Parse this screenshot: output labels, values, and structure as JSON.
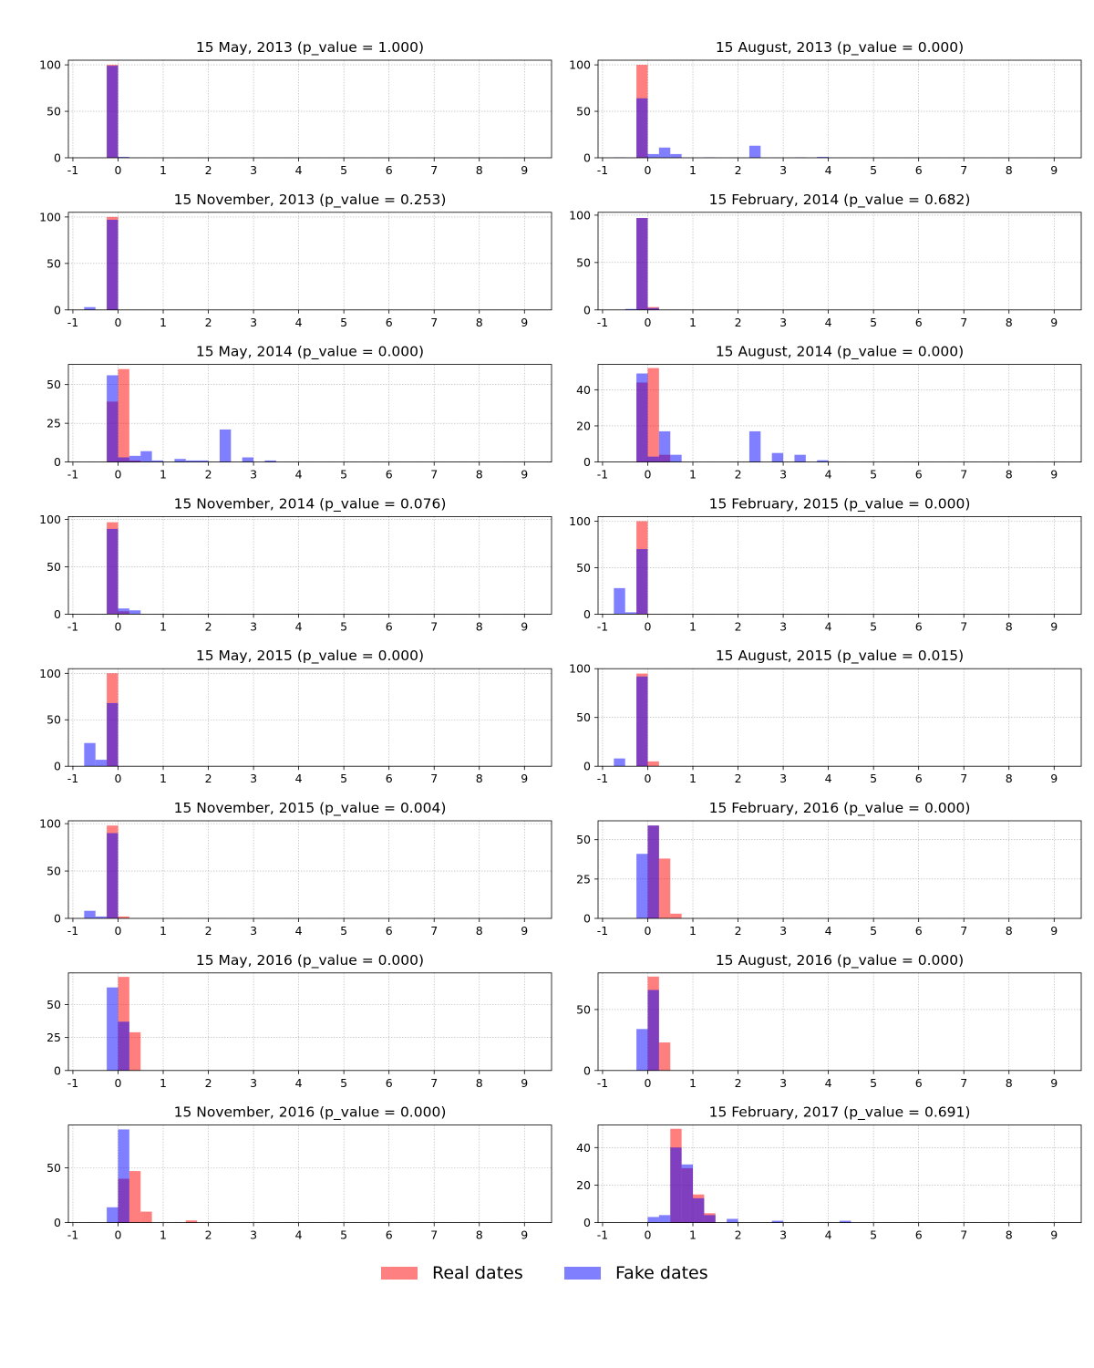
{
  "colors": {
    "real": "#ff0000",
    "fake": "#0000ff",
    "bar_alpha": 0.5,
    "grid": "#b0b0b0"
  },
  "legend": {
    "real_label": "Real dates",
    "fake_label": "Fake dates"
  },
  "chart_data": [
    {
      "type": "bar",
      "title": "15 May, 2013 (p_value = 1.000)",
      "xlim": [
        -1.1,
        9.6
      ],
      "ylim": [
        0,
        105
      ],
      "xticks": [
        -1,
        0,
        1,
        2,
        3,
        4,
        5,
        6,
        7,
        8,
        9
      ],
      "yticks": [
        0,
        50,
        100
      ],
      "bin_width": 0.25,
      "series": [
        {
          "name": "Real dates",
          "bins": [
            [
              -0.125,
              100
            ]
          ]
        },
        {
          "name": "Fake dates",
          "bins": [
            [
              -0.125,
              99
            ],
            [
              0.125,
              1
            ]
          ]
        }
      ]
    },
    {
      "type": "bar",
      "title": "15 August, 2013 (p_value = 0.000)",
      "xlim": [
        -1.1,
        9.6
      ],
      "ylim": [
        0,
        105
      ],
      "xticks": [
        -1,
        0,
        1,
        2,
        3,
        4,
        5,
        6,
        7,
        8,
        9
      ],
      "yticks": [
        0,
        50,
        100
      ],
      "bin_width": 0.25,
      "series": [
        {
          "name": "Real dates",
          "bins": [
            [
              -0.125,
              100
            ]
          ]
        },
        {
          "name": "Fake dates",
          "bins": [
            [
              -0.625,
              0.5
            ],
            [
              -0.125,
              64
            ],
            [
              0.125,
              4
            ],
            [
              0.375,
              11
            ],
            [
              0.625,
              4
            ],
            [
              1.375,
              0.5
            ],
            [
              2.375,
              13
            ],
            [
              3.375,
              0.5
            ],
            [
              3.875,
              1
            ]
          ]
        }
      ]
    },
    {
      "type": "bar",
      "title": "15 November, 2013 (p_value = 0.253)",
      "xlim": [
        -1.1,
        9.6
      ],
      "ylim": [
        0,
        105
      ],
      "xticks": [
        -1,
        0,
        1,
        2,
        3,
        4,
        5,
        6,
        7,
        8,
        9
      ],
      "yticks": [
        0,
        50,
        100
      ],
      "bin_width": 0.25,
      "series": [
        {
          "name": "Real dates",
          "bins": [
            [
              -0.125,
              100
            ]
          ]
        },
        {
          "name": "Fake dates",
          "bins": [
            [
              -0.625,
              3
            ],
            [
              -0.125,
              97
            ]
          ]
        }
      ]
    },
    {
      "type": "bar",
      "title": "15 February, 2014 (p_value = 0.682)",
      "xlim": [
        -1.1,
        9.6
      ],
      "ylim": [
        0,
        103
      ],
      "xticks": [
        -1,
        0,
        1,
        2,
        3,
        4,
        5,
        6,
        7,
        8,
        9
      ],
      "yticks": [
        0,
        50,
        100
      ],
      "bin_width": 0.25,
      "series": [
        {
          "name": "Real dates",
          "bins": [
            [
              -0.125,
              97
            ],
            [
              0.125,
              3
            ]
          ]
        },
        {
          "name": "Fake dates",
          "bins": [
            [
              -0.375,
              1
            ],
            [
              -0.125,
              97
            ],
            [
              0.125,
              2
            ]
          ]
        }
      ]
    },
    {
      "type": "bar",
      "title": "15 May, 2014 (p_value = 0.000)",
      "xlim": [
        -1.1,
        9.6
      ],
      "ylim": [
        0,
        63
      ],
      "xticks": [
        -1,
        0,
        1,
        2,
        3,
        4,
        5,
        6,
        7,
        8,
        9
      ],
      "yticks": [
        0,
        25,
        50
      ],
      "bin_width": 0.25,
      "series": [
        {
          "name": "Real dates",
          "bins": [
            [
              -0.125,
              39
            ],
            [
              0.125,
              60
            ],
            [
              0.375,
              1
            ]
          ]
        },
        {
          "name": "Fake dates",
          "bins": [
            [
              -0.125,
              56
            ],
            [
              0.125,
              3
            ],
            [
              0.375,
              4
            ],
            [
              0.625,
              7
            ],
            [
              0.875,
              1
            ],
            [
              1.375,
              2
            ],
            [
              1.625,
              1
            ],
            [
              1.875,
              1
            ],
            [
              2.375,
              21
            ],
            [
              2.875,
              3
            ],
            [
              3.375,
              1
            ]
          ]
        }
      ]
    },
    {
      "type": "bar",
      "title": "15 August, 2014 (p_value = 0.000)",
      "xlim": [
        -1.1,
        9.6
      ],
      "ylim": [
        0,
        54
      ],
      "xticks": [
        -1,
        0,
        1,
        2,
        3,
        4,
        5,
        6,
        7,
        8,
        9
      ],
      "yticks": [
        0,
        20,
        40
      ],
      "bin_width": 0.25,
      "series": [
        {
          "name": "Real dates",
          "bins": [
            [
              -0.125,
              44
            ],
            [
              0.125,
              52
            ],
            [
              0.375,
              4
            ]
          ]
        },
        {
          "name": "Fake dates",
          "bins": [
            [
              -0.125,
              49
            ],
            [
              0.125,
              3
            ],
            [
              0.375,
              17
            ],
            [
              0.625,
              4
            ],
            [
              2.375,
              17
            ],
            [
              2.875,
              5
            ],
            [
              3.375,
              4
            ],
            [
              3.875,
              1
            ]
          ]
        }
      ]
    },
    {
      "type": "bar",
      "title": "15 November, 2014 (p_value = 0.076)",
      "xlim": [
        -1.1,
        9.6
      ],
      "ylim": [
        0,
        103
      ],
      "xticks": [
        -1,
        0,
        1,
        2,
        3,
        4,
        5,
        6,
        7,
        8,
        9
      ],
      "yticks": [
        0,
        50,
        100
      ],
      "bin_width": 0.25,
      "series": [
        {
          "name": "Real dates",
          "bins": [
            [
              -0.125,
              97
            ],
            [
              0.125,
              3
            ]
          ]
        },
        {
          "name": "Fake dates",
          "bins": [
            [
              -0.125,
              90
            ],
            [
              0.125,
              6
            ],
            [
              0.375,
              4
            ]
          ]
        }
      ]
    },
    {
      "type": "bar",
      "title": "15 February, 2015 (p_value = 0.000)",
      "xlim": [
        -1.1,
        9.6
      ],
      "ylim": [
        0,
        105
      ],
      "xticks": [
        -1,
        0,
        1,
        2,
        3,
        4,
        5,
        6,
        7,
        8,
        9
      ],
      "yticks": [
        0,
        50,
        100
      ],
      "bin_width": 0.25,
      "series": [
        {
          "name": "Real dates",
          "bins": [
            [
              -0.125,
              100
            ]
          ]
        },
        {
          "name": "Fake dates",
          "bins": [
            [
              -0.625,
              28
            ],
            [
              -0.375,
              2
            ],
            [
              -0.125,
              70
            ]
          ]
        }
      ]
    },
    {
      "type": "bar",
      "title": "15 May, 2015 (p_value = 0.000)",
      "xlim": [
        -1.1,
        9.6
      ],
      "ylim": [
        0,
        105
      ],
      "xticks": [
        -1,
        0,
        1,
        2,
        3,
        4,
        5,
        6,
        7,
        8,
        9
      ],
      "yticks": [
        0,
        50,
        100
      ],
      "bin_width": 0.25,
      "series": [
        {
          "name": "Real dates",
          "bins": [
            [
              -0.125,
              100
            ]
          ]
        },
        {
          "name": "Fake dates",
          "bins": [
            [
              -0.625,
              25
            ],
            [
              -0.375,
              7
            ],
            [
              -0.125,
              68
            ]
          ]
        }
      ]
    },
    {
      "type": "bar",
      "title": "15 August, 2015 (p_value = 0.015)",
      "xlim": [
        -1.1,
        9.6
      ],
      "ylim": [
        0,
        100
      ],
      "xticks": [
        -1,
        0,
        1,
        2,
        3,
        4,
        5,
        6,
        7,
        8,
        9
      ],
      "yticks": [
        0,
        50,
        100
      ],
      "bin_width": 0.25,
      "series": [
        {
          "name": "Real dates",
          "bins": [
            [
              -0.125,
              95
            ],
            [
              0.125,
              5
            ]
          ]
        },
        {
          "name": "Fake dates",
          "bins": [
            [
              -0.625,
              8
            ],
            [
              -0.125,
              92
            ]
          ]
        }
      ]
    },
    {
      "type": "bar",
      "title": "15 November, 2015 (p_value = 0.004)",
      "xlim": [
        -1.1,
        9.6
      ],
      "ylim": [
        0,
        103
      ],
      "xticks": [
        -1,
        0,
        1,
        2,
        3,
        4,
        5,
        6,
        7,
        8,
        9
      ],
      "yticks": [
        0,
        50,
        100
      ],
      "bin_width": 0.25,
      "series": [
        {
          "name": "Real dates",
          "bins": [
            [
              -0.125,
              98
            ],
            [
              0.125,
              2
            ]
          ]
        },
        {
          "name": "Fake dates",
          "bins": [
            [
              -0.625,
              8
            ],
            [
              -0.375,
              2
            ],
            [
              -0.125,
              90
            ]
          ]
        }
      ]
    },
    {
      "type": "bar",
      "title": "15 February, 2016 (p_value = 0.000)",
      "xlim": [
        -1.1,
        9.6
      ],
      "ylim": [
        0,
        62
      ],
      "xticks": [
        -1,
        0,
        1,
        2,
        3,
        4,
        5,
        6,
        7,
        8,
        9
      ],
      "yticks": [
        0,
        25,
        50
      ],
      "bin_width": 0.25,
      "series": [
        {
          "name": "Real dates",
          "bins": [
            [
              0.125,
              59
            ],
            [
              0.375,
              38
            ],
            [
              0.625,
              3
            ]
          ]
        },
        {
          "name": "Fake dates",
          "bins": [
            [
              -0.125,
              41
            ],
            [
              0.125,
              59
            ]
          ]
        }
      ]
    },
    {
      "type": "bar",
      "title": "15 May, 2016 (p_value = 0.000)",
      "xlim": [
        -1.1,
        9.6
      ],
      "ylim": [
        0,
        74
      ],
      "xticks": [
        -1,
        0,
        1,
        2,
        3,
        4,
        5,
        6,
        7,
        8,
        9
      ],
      "yticks": [
        0,
        25,
        50
      ],
      "bin_width": 0.25,
      "series": [
        {
          "name": "Real dates",
          "bins": [
            [
              0.125,
              71
            ],
            [
              0.375,
              29
            ]
          ]
        },
        {
          "name": "Fake dates",
          "bins": [
            [
              -0.125,
              63
            ],
            [
              0.125,
              37
            ]
          ]
        }
      ]
    },
    {
      "type": "bar",
      "title": "15 August, 2016 (p_value = 0.000)",
      "xlim": [
        -1.1,
        9.6
      ],
      "ylim": [
        0,
        80
      ],
      "xticks": [
        -1,
        0,
        1,
        2,
        3,
        4,
        5,
        6,
        7,
        8,
        9
      ],
      "yticks": [
        0,
        50
      ],
      "bin_width": 0.25,
      "series": [
        {
          "name": "Real dates",
          "bins": [
            [
              0.125,
              77
            ],
            [
              0.375,
              23
            ]
          ]
        },
        {
          "name": "Fake dates",
          "bins": [
            [
              -0.125,
              34
            ],
            [
              0.125,
              66
            ]
          ]
        }
      ]
    },
    {
      "type": "bar",
      "title": "15 November, 2016 (p_value = 0.000)",
      "xlim": [
        -1.1,
        9.6
      ],
      "ylim": [
        0,
        89
      ],
      "xticks": [
        -1,
        0,
        1,
        2,
        3,
        4,
        5,
        6,
        7,
        8,
        9
      ],
      "yticks": [
        0,
        50
      ],
      "bin_width": 0.25,
      "series": [
        {
          "name": "Real dates",
          "bins": [
            [
              0.125,
              40
            ],
            [
              0.375,
              47
            ],
            [
              0.625,
              10
            ],
            [
              1.625,
              2
            ]
          ]
        },
        {
          "name": "Fake dates",
          "bins": [
            [
              -0.125,
              14
            ],
            [
              0.125,
              85
            ]
          ]
        }
      ]
    },
    {
      "type": "bar",
      "title": "15 February, 2017 (p_value = 0.691)",
      "xlim": [
        -1.1,
        9.6
      ],
      "ylim": [
        0,
        52
      ],
      "xticks": [
        -1,
        0,
        1,
        2,
        3,
        4,
        5,
        6,
        7,
        8,
        9
      ],
      "yticks": [
        0,
        20,
        40
      ],
      "bin_width": 0.25,
      "series": [
        {
          "name": "Real dates",
          "bins": [
            [
              0.625,
              50
            ],
            [
              0.875,
              29
            ],
            [
              1.125,
              15
            ],
            [
              1.375,
              5
            ]
          ]
        },
        {
          "name": "Fake dates",
          "bins": [
            [
              0.125,
              3
            ],
            [
              0.375,
              4
            ],
            [
              0.625,
              40
            ],
            [
              0.875,
              31
            ],
            [
              1.125,
              13
            ],
            [
              1.375,
              4
            ],
            [
              1.875,
              2
            ],
            [
              2.875,
              1
            ],
            [
              4.375,
              1
            ]
          ]
        }
      ]
    }
  ]
}
